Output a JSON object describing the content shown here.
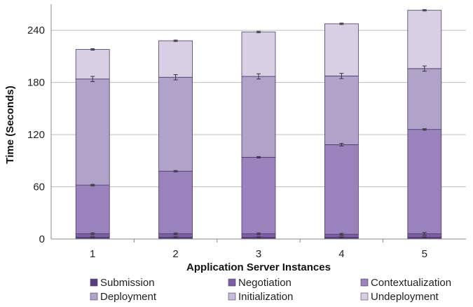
{
  "chart_data": {
    "type": "bar",
    "stacked": true,
    "categories": [
      "1",
      "2",
      "3",
      "4",
      "5"
    ],
    "xlabel": "Application Server Instances",
    "ylabel": "Time (Seconds)",
    "ylim": [
      0,
      270
    ],
    "yticks": [
      0,
      60,
      120,
      180,
      240
    ],
    "grid": true,
    "legend_position": "bottom",
    "series": [
      {
        "name": "Submission",
        "color": "#5a3f80",
        "values": [
          2,
          2,
          2,
          2,
          2
        ],
        "errors": [
          0.5,
          0.5,
          0.5,
          0.5,
          0.5
        ]
      },
      {
        "name": "Negotiation",
        "color": "#7d5fa6",
        "values": [
          4,
          4,
          4,
          3.5,
          4
        ],
        "errors": [
          1,
          1,
          1,
          1,
          1.5
        ]
      },
      {
        "name": "Contextualization",
        "color": "#9a82bc",
        "values": [
          56,
          72,
          88,
          103,
          120
        ],
        "errors": [
          0.8,
          0.8,
          0.8,
          1.5,
          0.8
        ]
      },
      {
        "name": "Deployment",
        "color": "#b0a2c8",
        "values": [
          122,
          108,
          93,
          79,
          70
        ],
        "errors": [
          3,
          3,
          3,
          3,
          3
        ]
      },
      {
        "name": "Initialization",
        "color": "#c7bcd9",
        "values": [
          0,
          0,
          0,
          0,
          0
        ],
        "errors": [
          0,
          0,
          0,
          0,
          0
        ]
      },
      {
        "name": "Undeployment",
        "color": "#d8cfe4",
        "values": [
          34,
          42,
          51,
          60,
          67
        ],
        "errors": [
          0.8,
          0.8,
          0.8,
          0.8,
          0.8
        ]
      }
    ]
  }
}
